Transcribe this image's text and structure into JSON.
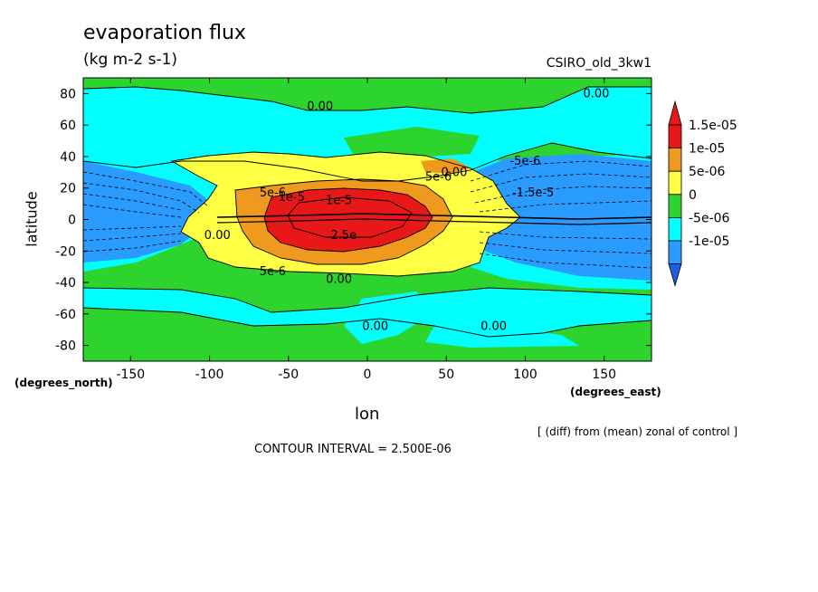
{
  "chart_data": {
    "type": "heatmap",
    "title": "evaporation flux",
    "subtitle": "(kg m-2 s-1)",
    "model_label": "CSIRO_old_3kw1",
    "xlabel": "lon",
    "ylabel": "latitude",
    "x_units": "(degrees_east)",
    "y_units": "(degrees_north)",
    "note": "[ (diff) from (mean) zonal of control ]",
    "contour_interval": "CONTOUR INTERVAL = 2.500E-06",
    "xlim": [
      -180,
      180
    ],
    "ylim": [
      -90,
      90
    ],
    "x_ticks": [
      -150,
      -100,
      -50,
      0,
      50,
      100,
      150
    ],
    "y_ticks": [
      80,
      60,
      40,
      20,
      0,
      -20,
      -40,
      -60,
      -80
    ],
    "legend": {
      "placement": "right",
      "labels": [
        "1.5e-05",
        "1e-05",
        "5e-06",
        "0",
        "-5e-06",
        "-1e-05"
      ],
      "colors": [
        "#e81818",
        "#ef9a1e",
        "#ffff44",
        "#2ed42e",
        "#00ffff",
        "#2a9bff",
        "#1f5fe6"
      ]
    },
    "regions": [
      {
        "level": "0 to 5e-06",
        "color": "#2ed42e",
        "description": "background positive band"
      },
      {
        "level": "5e-06 to 1e-05",
        "color": "#ffff44",
        "center": [
          -20,
          0
        ]
      },
      {
        "level": "1e-05 to 1.5e-05",
        "color": "#ef9a1e",
        "center": [
          -15,
          0
        ]
      },
      {
        "level": "> 1.5e-05",
        "color": "#e81818",
        "center": [
          -10,
          0
        ]
      }
    ],
    "contour_labels": [
      {
        "text": "0.00",
        "lon": -30,
        "lat": 72
      },
      {
        "text": "0.00",
        "lon": 145,
        "lat": 80
      },
      {
        "text": "-5e-6",
        "lon": 100,
        "lat": 37
      },
      {
        "text": "5e-6",
        "lon": 45,
        "lat": 27
      },
      {
        "text": "0.00",
        "lon": 55,
        "lat": 30
      },
      {
        "text": "5e-6",
        "lon": -60,
        "lat": 17
      },
      {
        "text": "1e-5",
        "lon": -48,
        "lat": 14
      },
      {
        "text": "1e-5",
        "lon": -18,
        "lat": 12
      },
      {
        "text": "-1.5e-5",
        "lon": 105,
        "lat": 17
      },
      {
        "text": "0.00",
        "lon": -95,
        "lat": -10
      },
      {
        "text": "2.5e",
        "lon": -15,
        "lat": -10
      },
      {
        "text": "5e-6",
        "lon": -60,
        "lat": -33
      },
      {
        "text": "0.00",
        "lon": -18,
        "lat": -38
      },
      {
        "text": "0.00",
        "lon": 5,
        "lat": -68
      },
      {
        "text": "0.00",
        "lon": 80,
        "lat": -68
      }
    ]
  }
}
